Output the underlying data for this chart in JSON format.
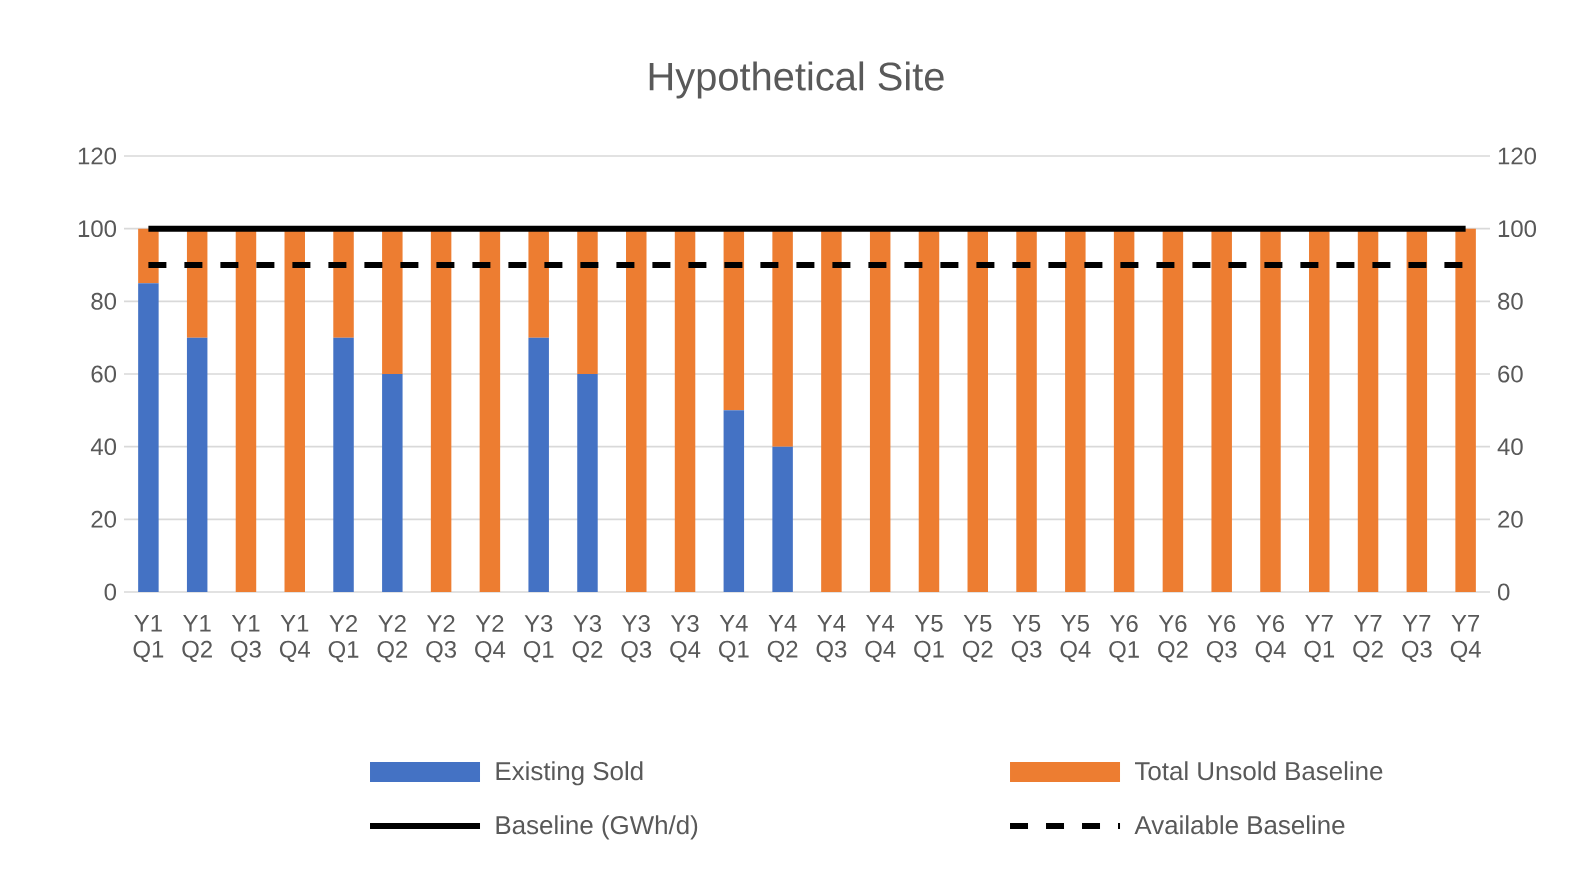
{
  "chart_data": {
    "type": "bar",
    "title": "Hypothetical Site",
    "stacked": true,
    "categories": [
      "Y1 Q1",
      "Y1 Q2",
      "Y1 Q3",
      "Y1 Q4",
      "Y2 Q1",
      "Y2 Q2",
      "Y2 Q3",
      "Y2 Q4",
      "Y3 Q1",
      "Y3 Q2",
      "Y3 Q3",
      "Y3 Q4",
      "Y4 Q1",
      "Y4 Q2",
      "Y4 Q3",
      "Y4 Q4",
      "Y5 Q1",
      "Y5 Q2",
      "Y5 Q3",
      "Y5 Q4",
      "Y6 Q1",
      "Y6 Q2",
      "Y6 Q3",
      "Y6 Q4",
      "Y7 Q1",
      "Y7 Q2",
      "Y7 Q3",
      "Y7 Q4"
    ],
    "series": [
      {
        "name": "Existing Sold",
        "color": "#4472c4",
        "values": [
          85,
          70,
          0,
          0,
          70,
          60,
          0,
          0,
          70,
          60,
          0,
          0,
          50,
          40,
          0,
          0,
          0,
          0,
          0,
          0,
          0,
          0,
          0,
          0,
          0,
          0,
          0,
          0
        ]
      },
      {
        "name": "Total Unsold Baseline",
        "color": "#ed7d31",
        "values": [
          15,
          30,
          100,
          100,
          30,
          40,
          100,
          100,
          30,
          40,
          100,
          100,
          50,
          60,
          100,
          100,
          100,
          100,
          100,
          100,
          100,
          100,
          100,
          100,
          100,
          100,
          100,
          100
        ]
      },
      {
        "name": "Baseline (GWh/d)",
        "type": "line",
        "axis": "y2",
        "line_style": "solid",
        "color": "#000000",
        "values": [
          100,
          100,
          100,
          100,
          100,
          100,
          100,
          100,
          100,
          100,
          100,
          100,
          100,
          100,
          100,
          100,
          100,
          100,
          100,
          100,
          100,
          100,
          100,
          100,
          100,
          100,
          100,
          100
        ]
      },
      {
        "name": "Available Baseline",
        "type": "line",
        "axis": "y2",
        "line_style": "dashed",
        "color": "#000000",
        "values": [
          90,
          90,
          90,
          90,
          90,
          90,
          90,
          90,
          90,
          90,
          90,
          90,
          90,
          90,
          90,
          90,
          90,
          90,
          90,
          90,
          90,
          90,
          90,
          90,
          90,
          90,
          90,
          90
        ]
      }
    ],
    "ylim": [
      0,
      120
    ],
    "yticks": [
      0,
      20,
      40,
      60,
      80,
      100,
      120
    ],
    "y2lim": [
      0,
      120
    ],
    "y2ticks": [
      0,
      20,
      40,
      60,
      80,
      100,
      120
    ],
    "grid": "y",
    "legend": "bottom"
  }
}
